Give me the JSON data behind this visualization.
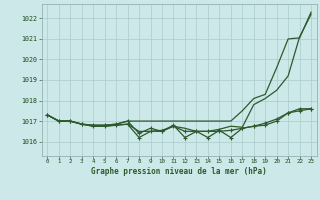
{
  "title": "Graphe pression niveau de la mer (hPa)",
  "background_color": "#cce8e8",
  "grid_color": "#aacccc",
  "line_color": "#2d5a2d",
  "x_ticks": [
    0,
    1,
    2,
    3,
    4,
    5,
    6,
    7,
    8,
    9,
    10,
    11,
    12,
    13,
    14,
    15,
    16,
    17,
    18,
    19,
    20,
    21,
    22,
    23
  ],
  "ylim": [
    1015.3,
    1022.7
  ],
  "yticks": [
    1016,
    1017,
    1018,
    1019,
    1020,
    1021,
    1022
  ],
  "series1_nomarker": [
    1017.3,
    1017.0,
    1017.0,
    1016.85,
    1016.8,
    1016.8,
    1016.85,
    1017.0,
    1017.0,
    1017.0,
    1017.0,
    1017.0,
    1017.0,
    1017.0,
    1017.0,
    1017.0,
    1017.0,
    1017.5,
    1018.1,
    1018.3,
    1019.6,
    1021.0,
    1021.05,
    1022.3
  ],
  "series2_nomarker": [
    1017.3,
    1017.0,
    1017.0,
    1016.85,
    1016.75,
    1016.75,
    1016.8,
    1016.85,
    1016.5,
    1016.5,
    1016.55,
    1016.75,
    1016.65,
    1016.5,
    1016.5,
    1016.6,
    1016.75,
    1016.7,
    1017.8,
    1018.1,
    1018.5,
    1019.2,
    1021.1,
    1022.2
  ],
  "series3_marker": [
    1017.3,
    1017.0,
    1017.0,
    1016.85,
    1016.75,
    1016.75,
    1016.8,
    1016.85,
    1016.2,
    1016.5,
    1016.5,
    1016.8,
    1016.2,
    1016.5,
    1016.2,
    1016.55,
    1016.2,
    1016.65,
    1016.75,
    1016.8,
    1017.0,
    1017.4,
    1017.6,
    1017.6
  ],
  "series4_marker": [
    1017.3,
    1017.0,
    1017.0,
    1016.85,
    1016.8,
    1016.8,
    1016.85,
    1017.0,
    1016.4,
    1016.65,
    1016.5,
    1016.75,
    1016.5,
    1016.5,
    1016.5,
    1016.5,
    1016.55,
    1016.65,
    1016.75,
    1016.9,
    1017.1,
    1017.4,
    1017.5,
    1017.6
  ]
}
